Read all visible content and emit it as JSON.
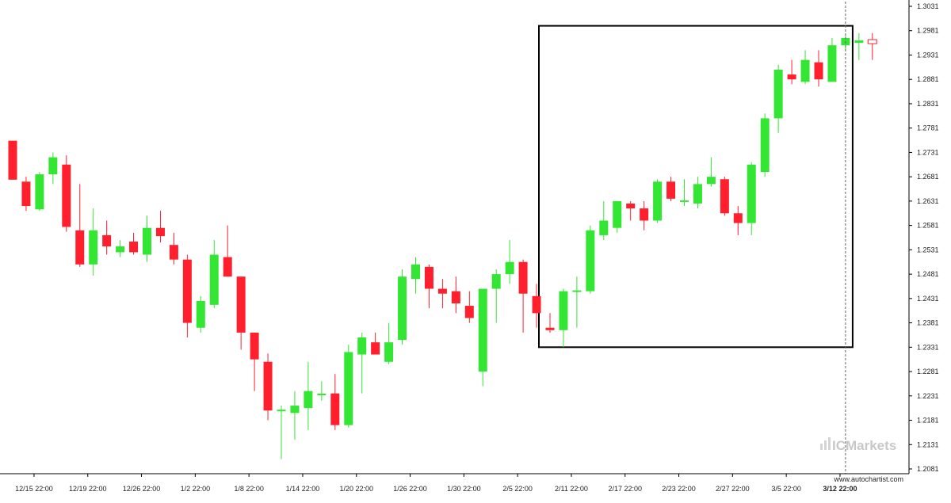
{
  "chart_data": {
    "type": "candlestick",
    "x_tick_labels": [
      "12/15 22:00",
      "12/19 22:00",
      "12/26 22:00",
      "1/2 22:00",
      "1/8 22:00",
      "1/14 22:00",
      "1/20 22:00",
      "1/26 22:00",
      "1/30 22:00",
      "2/5 22:00",
      "2/11 22:00",
      "2/17 22:00",
      "2/23 22:00",
      "2/27 22:00",
      "3/5 22:00",
      "3/12 22:00"
    ],
    "x_tick_candle_index": [
      1,
      5,
      9,
      13,
      17,
      21,
      25,
      29,
      33,
      37,
      41,
      45,
      49,
      53,
      57,
      61
    ],
    "current_label": "3/12 22:00",
    "y_ticks": [
      "1.3031",
      "1.2981",
      "1.2931",
      "1.2881",
      "1.2831",
      "1.2781",
      "1.2731",
      "1.2681",
      "1.2631",
      "1.2581",
      "1.2531",
      "1.2481",
      "1.2431",
      "1.2381",
      "1.2331",
      "1.2281",
      "1.2231",
      "1.2181",
      "1.2131",
      "1.2081"
    ],
    "ylim": [
      1.2081,
      1.3031
    ],
    "grid": false,
    "up_color": "#33e633",
    "down_color": "#ff1f2d",
    "candles": [
      {
        "o": 1.2755,
        "h": 1.2755,
        "l": 1.2675,
        "c": 1.2675
      },
      {
        "o": 1.2671,
        "h": 1.2681,
        "l": 1.2611,
        "c": 1.2621
      },
      {
        "o": 1.2614,
        "h": 1.2691,
        "l": 1.2611,
        "c": 1.2686
      },
      {
        "o": 1.2686,
        "h": 1.2731,
        "l": 1.2666,
        "c": 1.2721
      },
      {
        "o": 1.2706,
        "h": 1.2725,
        "l": 1.2568,
        "c": 1.2578
      },
      {
        "o": 1.2571,
        "h": 1.2666,
        "l": 1.2496,
        "c": 1.2501
      },
      {
        "o": 1.2501,
        "h": 1.2616,
        "l": 1.2478,
        "c": 1.2571
      },
      {
        "o": 1.2561,
        "h": 1.2591,
        "l": 1.2521,
        "c": 1.2538
      },
      {
        "o": 1.2526,
        "h": 1.2551,
        "l": 1.2516,
        "c": 1.2538
      },
      {
        "o": 1.2548,
        "h": 1.2566,
        "l": 1.2521,
        "c": 1.2526
      },
      {
        "o": 1.2521,
        "h": 1.2601,
        "l": 1.2506,
        "c": 1.2576
      },
      {
        "o": 1.2576,
        "h": 1.2611,
        "l": 1.2546,
        "c": 1.2559
      },
      {
        "o": 1.2541,
        "h": 1.2566,
        "l": 1.2501,
        "c": 1.2511
      },
      {
        "o": 1.2511,
        "h": 1.2521,
        "l": 1.2351,
        "c": 1.2381
      },
      {
        "o": 1.2371,
        "h": 1.2436,
        "l": 1.2361,
        "c": 1.2426
      },
      {
        "o": 1.2418,
        "h": 1.2551,
        "l": 1.2411,
        "c": 1.2521
      },
      {
        "o": 1.2516,
        "h": 1.2581,
        "l": 1.2476,
        "c": 1.2476
      },
      {
        "o": 1.2476,
        "h": 1.2476,
        "l": 1.2326,
        "c": 1.2361
      },
      {
        "o": 1.2361,
        "h": 1.2361,
        "l": 1.2241,
        "c": 1.2306
      },
      {
        "o": 1.2301,
        "h": 1.2318,
        "l": 1.2181,
        "c": 1.2201
      },
      {
        "o": 1.2201,
        "h": 1.2211,
        "l": 1.2101,
        "c": 1.2201
      },
      {
        "o": 1.2196,
        "h": 1.2241,
        "l": 1.2141,
        "c": 1.2211
      },
      {
        "o": 1.2206,
        "h": 1.2301,
        "l": 1.2161,
        "c": 1.2241
      },
      {
        "o": 1.2234,
        "h": 1.2261,
        "l": 1.2221,
        "c": 1.2234
      },
      {
        "o": 1.2236,
        "h": 1.2276,
        "l": 1.2161,
        "c": 1.2171
      },
      {
        "o": 1.2171,
        "h": 1.2336,
        "l": 1.2166,
        "c": 1.2321
      },
      {
        "o": 1.2316,
        "h": 1.2361,
        "l": 1.2236,
        "c": 1.2351
      },
      {
        "o": 1.2341,
        "h": 1.2361,
        "l": 1.2321,
        "c": 1.2316
      },
      {
        "o": 1.2301,
        "h": 1.2381,
        "l": 1.2296,
        "c": 1.2341
      },
      {
        "o": 1.2346,
        "h": 1.2491,
        "l": 1.2336,
        "c": 1.2476
      },
      {
        "o": 1.2471,
        "h": 1.2516,
        "l": 1.2441,
        "c": 1.2501
      },
      {
        "o": 1.2496,
        "h": 1.2501,
        "l": 1.2411,
        "c": 1.2451
      },
      {
        "o": 1.2451,
        "h": 1.2471,
        "l": 1.2411,
        "c": 1.2441
      },
      {
        "o": 1.2446,
        "h": 1.2476,
        "l": 1.2401,
        "c": 1.2421
      },
      {
        "o": 1.2416,
        "h": 1.2446,
        "l": 1.2381,
        "c": 1.2391
      },
      {
        "o": 1.2281,
        "h": 1.2451,
        "l": 1.2251,
        "c": 1.2451
      },
      {
        "o": 1.2451,
        "h": 1.2491,
        "l": 1.2381,
        "c": 1.2481
      },
      {
        "o": 1.2481,
        "h": 1.2551,
        "l": 1.2461,
        "c": 1.2506
      },
      {
        "o": 1.2506,
        "h": 1.2511,
        "l": 1.2361,
        "c": 1.2441
      },
      {
        "o": 1.2436,
        "h": 1.2461,
        "l": 1.2371,
        "c": 1.2401
      },
      {
        "o": 1.2371,
        "h": 1.2401,
        "l": 1.2361,
        "c": 1.2366
      },
      {
        "o": 1.2366,
        "h": 1.2451,
        "l": 1.2331,
        "c": 1.2446
      },
      {
        "o": 1.2446,
        "h": 1.2476,
        "l": 1.2371,
        "c": 1.2446
      },
      {
        "o": 1.2446,
        "h": 1.2581,
        "l": 1.2441,
        "c": 1.2571
      },
      {
        "o": 1.2561,
        "h": 1.2631,
        "l": 1.2551,
        "c": 1.2591
      },
      {
        "o": 1.2576,
        "h": 1.2631,
        "l": 1.2566,
        "c": 1.2631
      },
      {
        "o": 1.2626,
        "h": 1.2631,
        "l": 1.2591,
        "c": 1.2616
      },
      {
        "o": 1.2616,
        "h": 1.2631,
        "l": 1.2571,
        "c": 1.2591
      },
      {
        "o": 1.2591,
        "h": 1.2676,
        "l": 1.2586,
        "c": 1.2671
      },
      {
        "o": 1.2671,
        "h": 1.2681,
        "l": 1.2631,
        "c": 1.2636
      },
      {
        "o": 1.2631,
        "h": 1.2676,
        "l": 1.2621,
        "c": 1.2631
      },
      {
        "o": 1.2626,
        "h": 1.2681,
        "l": 1.2616,
        "c": 1.2666
      },
      {
        "o": 1.2666,
        "h": 1.2721,
        "l": 1.2661,
        "c": 1.2681
      },
      {
        "o": 1.2676,
        "h": 1.2681,
        "l": 1.2601,
        "c": 1.2606
      },
      {
        "o": 1.2606,
        "h": 1.2621,
        "l": 1.2561,
        "c": 1.2586
      },
      {
        "o": 1.2586,
        "h": 1.2711,
        "l": 1.2561,
        "c": 1.2706
      },
      {
        "o": 1.2691,
        "h": 1.2811,
        "l": 1.2681,
        "c": 1.2801
      },
      {
        "o": 1.2801,
        "h": 1.2911,
        "l": 1.2771,
        "c": 1.2901
      },
      {
        "o": 1.2891,
        "h": 1.2921,
        "l": 1.2871,
        "c": 1.2881
      },
      {
        "o": 1.2876,
        "h": 1.2941,
        "l": 1.2871,
        "c": 1.2921
      },
      {
        "o": 1.2916,
        "h": 1.2941,
        "l": 1.2866,
        "c": 1.2881
      },
      {
        "o": 1.2876,
        "h": 1.2966,
        "l": 1.2876,
        "c": 1.2951
      },
      {
        "o": 1.2951,
        "h": 1.2971,
        "l": 1.2941,
        "c": 1.2966
      },
      {
        "o": 1.2956,
        "h": 1.2976,
        "l": 1.2921,
        "c": 1.2961
      }
    ],
    "last_candle": {
      "o": 1.2956,
      "h": 1.2976,
      "l": 1.2921,
      "c": 1.2961,
      "style": "hollow"
    },
    "pattern_box": {
      "from_candle": 40,
      "to_candle": 62,
      "price_top": 1.2991,
      "price_bottom": 1.2331
    },
    "crosshair_candle": 62
  },
  "watermark": {
    "brand": "ICMarkets"
  },
  "source": "www.autochartist.com"
}
